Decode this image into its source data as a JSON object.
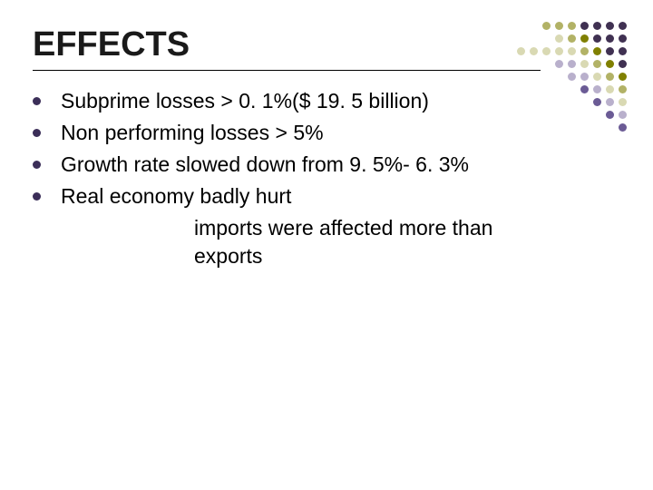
{
  "title": "EFFECTS",
  "bullets": [
    "Subprime losses > 0. 1%($ 19. 5 billion)",
    "Non performing losses > 5%",
    "Growth rate slowed down from 9. 5%- 6. 3%",
    "Real economy badly hurt"
  ],
  "sublines": [
    "imports were affected more than",
    "exports"
  ],
  "colors": {
    "bullet": "#3b2e58",
    "rule": "#000000",
    "text": "#000000",
    "title": "#1a1a1a",
    "background": "#ffffff",
    "dot_purple_dark": "#403152",
    "dot_purple_mid": "#6b5b95",
    "dot_purple_light": "#b9b0cc",
    "dot_olive_dark": "#808000",
    "dot_olive_mid": "#b2b266",
    "dot_olive_light": "#d9d9b3"
  },
  "dot_pattern": [
    [
      "",
      "",
      "dot_olive_mid",
      "dot_olive_mid",
      "dot_olive_mid",
      "dot_purple_dark",
      "dot_purple_dark",
      "dot_purple_dark",
      "dot_purple_dark"
    ],
    [
      "",
      "",
      "",
      "dot_olive_light",
      "dot_olive_mid",
      "dot_olive_dark",
      "dot_purple_dark",
      "dot_purple_dark",
      "dot_purple_dark"
    ],
    [
      "dot_olive_light",
      "dot_olive_light",
      "dot_olive_light",
      "dot_olive_light",
      "dot_olive_light",
      "dot_olive_mid",
      "dot_olive_dark",
      "dot_purple_dark",
      "dot_purple_dark"
    ],
    [
      "",
      "",
      "",
      "dot_purple_light",
      "dot_purple_light",
      "dot_olive_light",
      "dot_olive_mid",
      "dot_olive_dark",
      "dot_purple_dark"
    ],
    [
      "",
      "",
      "",
      "",
      "dot_purple_light",
      "dot_purple_light",
      "dot_olive_light",
      "dot_olive_mid",
      "dot_olive_dark"
    ],
    [
      "",
      "",
      "",
      "",
      "",
      "dot_purple_mid",
      "dot_purple_light",
      "dot_olive_light",
      "dot_olive_mid"
    ],
    [
      "",
      "",
      "",
      "",
      "",
      "",
      "dot_purple_mid",
      "dot_purple_light",
      "dot_olive_light"
    ],
    [
      "",
      "",
      "",
      "",
      "",
      "",
      "",
      "dot_purple_mid",
      "dot_purple_light"
    ],
    [
      "",
      "",
      "",
      "",
      "",
      "",
      "",
      "",
      "dot_purple_mid"
    ]
  ],
  "typography": {
    "title_fontsize": 38,
    "body_fontsize": 23,
    "font_family": "Arial"
  }
}
